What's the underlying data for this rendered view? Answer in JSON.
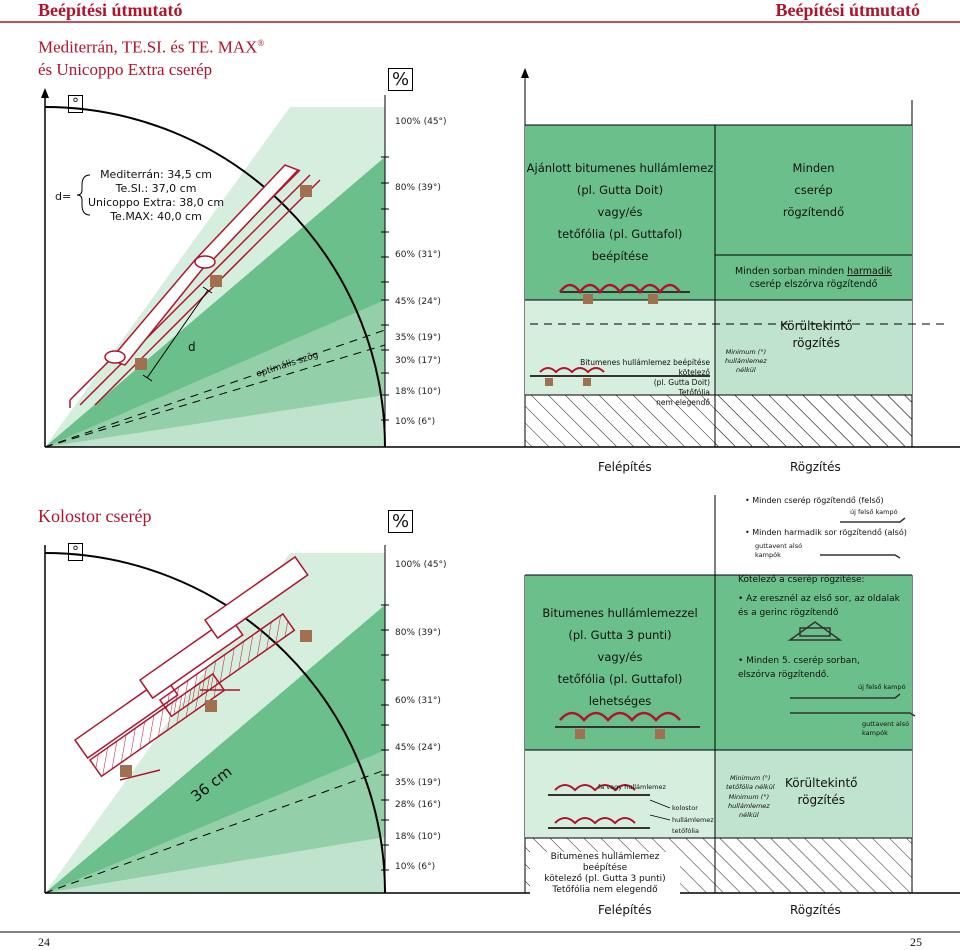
{
  "header": {
    "left_title": "Beépítési útmutató",
    "right_title": "Beépítési útmutató",
    "subtitle_line1": "Mediterrán, TE.SI. és TE. MAX",
    "subtitle_reg": "®",
    "subtitle_line2": "és Unicoppo Extra cserép"
  },
  "colors": {
    "accent": "#b0142c",
    "green_dark": "#6bbf8a",
    "green_mid": "#93cfa9",
    "green_light": "#bfe3cc",
    "green_pale": "#d6eedd"
  },
  "top": {
    "deg_symbol": "°",
    "pct_symbol": "%",
    "d_label": "d=",
    "d_values": [
      "Mediterrán: 34,5 cm",
      "Te.SI.: 37,0 cm",
      "Unicoppo Extra: 38,0 cm",
      "Te.MAX: 40,0 cm"
    ],
    "d_mark": "d",
    "optimal": "optimális szög",
    "pct_labels": [
      "100% (45°)",
      "80% (39°)",
      "60% (31°)",
      "45% (24°)",
      "35% (19°)",
      "30% (17°)",
      "18% (10°)",
      "10% (6°)"
    ],
    "zone1_lines": [
      "Ajánlott bitumenes hullámlemez",
      "(pl. Gutta Doit)",
      "vagy/és",
      "tetőfólia (pl. Guttafol)"
    ],
    "zone1_build": "beépítése",
    "zone1b_lines": [
      "Bitumenes hullámlemez beépítése kötelező",
      "(pl. Gutta Doit)",
      "Tetőfólia",
      "nem elegendő"
    ],
    "fix_all": [
      "Minden",
      "cserép",
      "rögzítendő"
    ],
    "fix_third_pre": "Minden sorban minden ",
    "fix_third_u": "harmadik",
    "fix_third_post": "cserép elszórva rögzítendő",
    "min_lines": [
      "Minimum (°)",
      "hullámlemez",
      "nélkül"
    ],
    "careful": [
      "Körültekintő",
      "rögzítés"
    ],
    "felepites": "Felépítés",
    "rogzites": "Rögzítés"
  },
  "bottom": {
    "title": "Kolostor cserép",
    "deg_symbol": "°",
    "pct_symbol": "%",
    "length": "36 cm",
    "pct_labels": [
      "100% (45°)",
      "80% (39°)",
      "60% (31°)",
      "45% (24°)",
      "35% (19°)",
      "28% (16°)",
      "18% (10°)",
      "10% (6°)"
    ],
    "zone1_lines": [
      "Bitumenes hullámlemezzel",
      "(pl. Gutta 3 punti)",
      "vagy/és",
      "tetőfólia (pl. Guttafol) lehetséges"
    ],
    "fa_vagy": "fa vagy hullámlemez",
    "kolostor": "kolostor",
    "hullamlemez": "hullámlemez",
    "tetofolia": "tetőfólia",
    "mandatory_lines": [
      "Bitumenes hullámlemez beépítése",
      "kötelező (pl. Gutta 3 punti)",
      "Tetőfólia nem elegendő"
    ],
    "top_notes": [
      "Minden cserép rögzítendő (felső)",
      "új felső kampó",
      "Minden harmadik sor rögzítendő (alsó)",
      "guttavent alsó",
      "kampók"
    ],
    "mandatory_fix": "Kötelező a cserép rögzítése:",
    "eaves_lines": [
      "Az eresznél az első sor, az oldalak",
      "és a gerinc rögzítendő"
    ],
    "fifth_lines": [
      "Minden 5. cserép sorban,",
      "elszórva rögzítendő."
    ],
    "new_hook": "új felső kampó",
    "gutta_hook": [
      "guttavent alsó",
      "kampók"
    ],
    "min_foil": [
      "Minimum (°)",
      "tetőfólia nélkül"
    ],
    "min_wave": [
      "Minimum (°)",
      "hullámlemez",
      "nélkül"
    ],
    "careful": [
      "Körültekintő",
      "rögzítés"
    ],
    "felepites": "Felépítés",
    "rogzites": "Rögzítés"
  },
  "footer": {
    "page_left": "24",
    "page_right": "25"
  }
}
